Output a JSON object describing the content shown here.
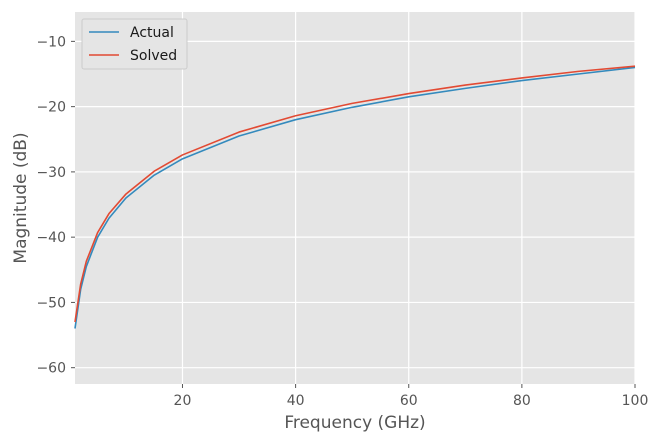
{
  "chart_data": {
    "type": "line",
    "title": "",
    "xlabel": "Frequency (GHz)",
    "ylabel": "Magnitude (dB)",
    "xlim": [
      1,
      100
    ],
    "ylim": [
      -62.5,
      -5.5
    ],
    "xticks": [
      20,
      40,
      60,
      80,
      100
    ],
    "xtick_labels": [
      "20",
      "40",
      "60",
      "80",
      "100"
    ],
    "yticks": [
      -60,
      -50,
      -40,
      -30,
      -20,
      -10
    ],
    "ytick_labels": [
      "−60",
      "−50",
      "−40",
      "−30",
      "−20",
      "−10"
    ],
    "grid": true,
    "legend_position": "top-left",
    "x": [
      1,
      2,
      3,
      5,
      7,
      10,
      15,
      20,
      30,
      40,
      50,
      60,
      70,
      80,
      90,
      100
    ],
    "series": [
      {
        "name": "Actual",
        "color": "#348ABD",
        "values": [
          -54.0,
          -48.0,
          -44.5,
          -40.0,
          -37.1,
          -34.0,
          -30.5,
          -28.0,
          -24.5,
          -22.0,
          -20.1,
          -18.5,
          -17.2,
          -16.0,
          -15.0,
          -14.0
        ]
      },
      {
        "name": "Solved",
        "color": "#E24A33",
        "values": [
          -53.0,
          -47.2,
          -43.7,
          -39.3,
          -36.4,
          -33.4,
          -29.9,
          -27.4,
          -23.9,
          -21.4,
          -19.5,
          -18.0,
          -16.7,
          -15.6,
          -14.6,
          -13.8
        ]
      }
    ]
  }
}
